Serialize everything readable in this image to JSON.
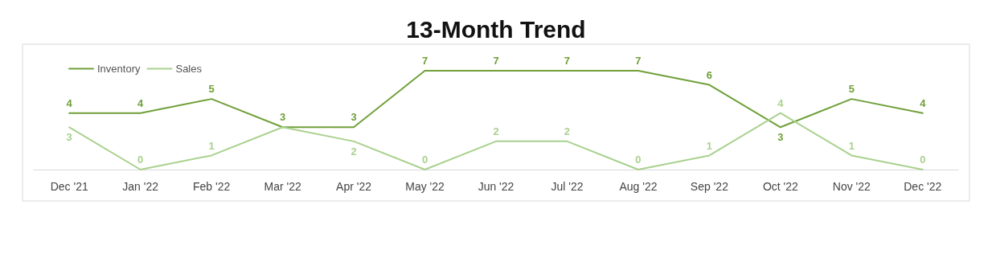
{
  "chart_data": {
    "type": "line",
    "title": "13-Month Trend",
    "categories": [
      "Dec '21",
      "Jan '22",
      "Feb '22",
      "Mar '22",
      "Apr '22",
      "May '22",
      "Jun '22",
      "Jul '22",
      "Aug '22",
      "Sep '22",
      "Oct '22",
      "Nov '22",
      "Dec '22"
    ],
    "series": [
      {
        "name": "Inventory",
        "color": "#70a03a",
        "values": [
          4,
          4,
          5,
          3,
          3,
          7,
          7,
          7,
          7,
          6,
          3,
          5,
          4
        ],
        "value_labels": [
          "4",
          "4",
          "5",
          "3",
          "3",
          "7",
          "7",
          "7",
          "7",
          "6",
          "3",
          "5",
          "4"
        ]
      },
      {
        "name": "Sales",
        "color": "#a9d18e",
        "values": [
          3,
          0,
          1,
          3,
          2,
          0,
          2,
          2,
          0,
          1,
          4,
          1,
          0
        ],
        "value_labels": [
          "3",
          "0",
          "1",
          null,
          "2",
          "0",
          "2",
          "2",
          "0",
          "1",
          "4",
          "1",
          "0"
        ]
      }
    ],
    "legend": "top left",
    "marker": "none",
    "line_style": "solid",
    "grid": false
  }
}
